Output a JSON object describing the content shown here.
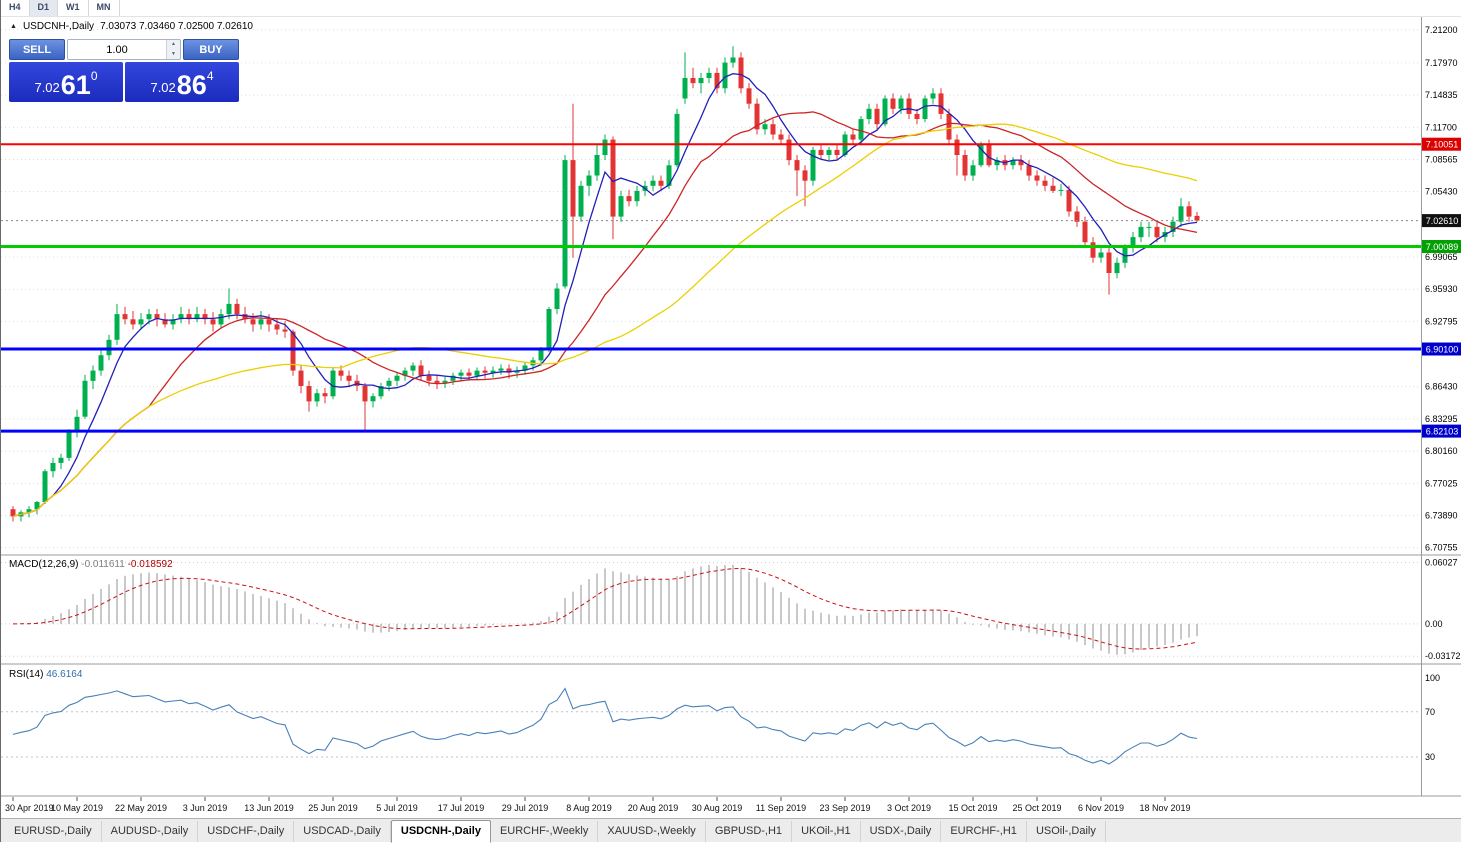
{
  "toolbar": {
    "timeframes": [
      "H4",
      "D1",
      "W1",
      "MN"
    ],
    "active": "D1"
  },
  "chart": {
    "symbol_title": "USDCNH-,Daily",
    "ohlc_title": "7.03073 7.03460 7.02500 7.02610"
  },
  "one_click": {
    "sell_label": "SELL",
    "buy_label": "BUY",
    "volume": "1.00",
    "sell_price": {
      "main": "7.02",
      "big": "61",
      "sup": "0"
    },
    "buy_price": {
      "main": "7.02",
      "big": "86",
      "sup": "4"
    }
  },
  "current_price": {
    "text": "7.02610",
    "value": 7.0261
  },
  "price_axis": {
    "labels": [
      {
        "text": "7.21200",
        "value": 7.212
      },
      {
        "text": "7.17970",
        "value": 7.1797
      },
      {
        "text": "7.14835",
        "value": 7.14835
      },
      {
        "text": "7.11700",
        "value": 7.117
      },
      {
        "text": "7.08565",
        "value": 7.08565
      },
      {
        "text": "7.05430",
        "value": 7.0543
      },
      {
        "text": "6.99065",
        "value": 6.99065
      },
      {
        "text": "6.95930",
        "value": 6.9593
      },
      {
        "text": "6.92795",
        "value": 6.92795
      },
      {
        "text": "6.86430",
        "value": 6.8643
      },
      {
        "text": "6.83295",
        "value": 6.83295
      },
      {
        "text": "6.80160",
        "value": 6.8016
      },
      {
        "text": "6.77025",
        "value": 6.77025
      },
      {
        "text": "6.73890",
        "value": 6.7389
      },
      {
        "text": "6.70755",
        "value": 6.70755
      }
    ],
    "badges": [
      {
        "text": "7.10051",
        "value": 7.10051,
        "bg": "#dd0000",
        "fg": "#ffffff"
      },
      {
        "text": "7.02610",
        "value": 7.0261,
        "bg": "#111111",
        "fg": "#ffffff"
      },
      {
        "text": "7.00089",
        "value": 7.00089,
        "bg": "#00a000",
        "fg": "#ffffff"
      },
      {
        "text": "6.90100",
        "value": 6.901,
        "bg": "#0000cc",
        "fg": "#ffffff"
      },
      {
        "text": "6.82103",
        "value": 6.82103,
        "bg": "#0000cc",
        "fg": "#ffffff"
      }
    ]
  },
  "levels": [
    {
      "value": 7.10051,
      "color": "#ff0000",
      "width": 2
    },
    {
      "value": 7.00089,
      "color": "#00cc00",
      "width": 3
    },
    {
      "value": 6.901,
      "color": "#0000ff",
      "width": 3
    },
    {
      "value": 6.82103,
      "color": "#0000ff",
      "width": 3
    }
  ],
  "macd_panel": {
    "name": "MACD(12,26,9)",
    "value_main": "-0.011611",
    "value_signal": "-0.018592",
    "axis_labels": [
      {
        "text": "0.06027",
        "value": 0.06027
      },
      {
        "text": "0.00",
        "value": 0
      },
      {
        "text": "-0.03172",
        "value": -0.03172
      }
    ],
    "range": [
      -0.0335,
      0.0628
    ]
  },
  "rsi_panel": {
    "name": "RSI(14)",
    "value": "46.6164",
    "axis_labels": [
      {
        "text": "100",
        "value": 100
      },
      {
        "text": "70",
        "value": 70
      },
      {
        "text": "30",
        "value": 30
      }
    ],
    "levels": [
      70,
      30
    ],
    "range": [
      0,
      106
    ]
  },
  "tabs": {
    "items": [
      {
        "label": "EURUSD-,Daily",
        "active": false
      },
      {
        "label": "AUDUSD-,Daily",
        "active": false
      },
      {
        "label": "USDCHF-,Daily",
        "active": false
      },
      {
        "label": "USDCAD-,Daily",
        "active": false
      },
      {
        "label": "USDCNH-,Daily",
        "active": true
      },
      {
        "label": "EURCHF-,Weekly",
        "active": false
      },
      {
        "label": "XAUUSD-,Weekly",
        "active": false
      },
      {
        "label": "GBPUSD-,H1",
        "active": false
      },
      {
        "label": "UKOil-,H1",
        "active": false
      },
      {
        "label": "USDX-,Daily",
        "active": false
      },
      {
        "label": "EURCHF-,H1",
        "active": false
      },
      {
        "label": "USOil-,Daily",
        "active": false
      }
    ]
  },
  "chart_data": {
    "type": "candlestick",
    "symbol": "USDCNH-",
    "timeframe": "Daily",
    "title": "USDCNH-,Daily",
    "last_ohlc": {
      "open": 7.03073,
      "high": 7.0346,
      "low": 7.025,
      "close": 7.0261
    },
    "price_range_visible": [
      6.7033,
      7.2215
    ],
    "grid": true,
    "moving_averages": [
      {
        "type": "sma",
        "period": 6,
        "color": "#2020b8"
      },
      {
        "type": "sma",
        "period": 18,
        "color": "#cc2424"
      },
      {
        "type": "sma",
        "period": 42,
        "color": "#eccf00"
      }
    ],
    "colors": {
      "up": "#00b04f",
      "down": "#e23434",
      "grid": "#dadada",
      "macd_hist": "#b2b2b2",
      "macd_signal": "#cc1111",
      "rsi": "#4a80b8"
    },
    "date_labels": [
      {
        "label": "30 Apr 2019",
        "index": 0
      },
      {
        "label": "10 May 2019",
        "index": 8
      },
      {
        "label": "22 May 2019",
        "index": 16
      },
      {
        "label": "3 Jun 2019",
        "index": 24
      },
      {
        "label": "13 Jun 2019",
        "index": 32
      },
      {
        "label": "25 Jun 2019",
        "index": 40
      },
      {
        "label": "5 Jul 2019",
        "index": 48
      },
      {
        "label": "17 Jul 2019",
        "index": 56
      },
      {
        "label": "29 Jul 2019",
        "index": 64
      },
      {
        "label": "8 Aug 2019",
        "index": 72
      },
      {
        "label": "20 Aug 2019",
        "index": 80
      },
      {
        "label": "30 Aug 2019",
        "index": 88
      },
      {
        "label": "11 Sep 2019",
        "index": 96
      },
      {
        "label": "23 Sep 2019",
        "index": 104
      },
      {
        "label": "3 Oct 2019",
        "index": 112
      },
      {
        "label": "15 Oct 2019",
        "index": 120
      },
      {
        "label": "25 Oct 2019",
        "index": 128
      },
      {
        "label": "6 Nov 2019",
        "index": 136
      },
      {
        "label": "18 Nov 2019",
        "index": 144
      }
    ],
    "candles": [
      [
        6.745,
        6.748,
        6.733,
        6.738
      ],
      [
        6.738,
        6.744,
        6.733,
        6.742
      ],
      [
        6.742,
        6.748,
        6.737,
        6.745
      ],
      [
        6.745,
        6.753,
        6.74,
        6.752
      ],
      [
        6.752,
        6.784,
        6.75,
        6.782
      ],
      [
        6.782,
        6.795,
        6.776,
        6.79
      ],
      [
        6.79,
        6.799,
        6.784,
        6.795
      ],
      [
        6.795,
        6.823,
        6.792,
        6.82
      ],
      [
        6.82,
        6.842,
        6.815,
        6.835
      ],
      [
        6.835,
        6.876,
        6.833,
        6.87
      ],
      [
        6.87,
        6.885,
        6.862,
        6.88
      ],
      [
        6.88,
        6.9,
        6.875,
        6.895
      ],
      [
        6.895,
        6.915,
        6.89,
        6.91
      ],
      [
        6.91,
        6.945,
        6.905,
        6.935
      ],
      [
        6.935,
        6.942,
        6.925,
        6.93
      ],
      [
        6.93,
        6.938,
        6.92,
        6.925
      ],
      [
        6.925,
        6.936,
        6.92,
        6.93
      ],
      [
        6.93,
        6.94,
        6.925,
        6.935
      ],
      [
        6.935,
        6.94,
        6.923,
        6.93
      ],
      [
        6.93,
        6.936,
        6.922,
        6.925
      ],
      [
        6.925,
        6.935,
        6.92,
        6.93
      ],
      [
        6.93,
        6.942,
        6.926,
        6.935
      ],
      [
        6.935,
        6.94,
        6.925,
        6.93
      ],
      [
        6.93,
        6.942,
        6.927,
        6.935
      ],
      [
        6.935,
        6.94,
        6.925,
        6.93
      ],
      [
        6.93,
        6.937,
        6.918,
        6.925
      ],
      [
        6.925,
        6.94,
        6.921,
        6.935
      ],
      [
        6.935,
        6.96,
        6.93,
        6.945
      ],
      [
        6.945,
        6.95,
        6.93,
        6.935
      ],
      [
        6.935,
        6.942,
        6.926,
        6.93
      ],
      [
        6.93,
        6.936,
        6.918,
        6.925
      ],
      [
        6.925,
        6.938,
        6.92,
        6.93
      ],
      [
        6.93,
        6.935,
        6.918,
        6.925
      ],
      [
        6.925,
        6.93,
        6.915,
        6.92
      ],
      [
        6.92,
        6.928,
        6.912,
        6.918
      ],
      [
        6.918,
        6.92,
        6.875,
        6.88
      ],
      [
        6.88,
        6.885,
        6.858,
        6.865
      ],
      [
        6.865,
        6.87,
        6.84,
        6.85
      ],
      [
        6.85,
        6.862,
        6.845,
        6.858
      ],
      [
        6.858,
        6.863,
        6.848,
        6.855
      ],
      [
        6.855,
        6.883,
        6.852,
        6.88
      ],
      [
        6.88,
        6.885,
        6.87,
        6.875
      ],
      [
        6.875,
        6.88,
        6.865,
        6.87
      ],
      [
        6.87,
        6.876,
        6.86,
        6.865
      ],
      [
        6.865,
        6.868,
        6.821,
        6.85
      ],
      [
        6.85,
        6.858,
        6.844,
        6.855
      ],
      [
        6.855,
        6.868,
        6.852,
        6.865
      ],
      [
        6.865,
        6.873,
        6.86,
        6.87
      ],
      [
        6.87,
        6.878,
        6.865,
        6.875
      ],
      [
        6.875,
        6.883,
        6.87,
        6.88
      ],
      [
        6.88,
        6.888,
        6.875,
        6.885
      ],
      [
        6.885,
        6.89,
        6.87,
        6.875
      ],
      [
        6.875,
        6.88,
        6.865,
        6.87
      ],
      [
        6.87,
        6.875,
        6.862,
        6.868
      ],
      [
        6.868,
        6.874,
        6.863,
        6.87
      ],
      [
        6.87,
        6.878,
        6.866,
        6.875
      ],
      [
        6.875,
        6.881,
        6.87,
        6.878
      ],
      [
        6.878,
        6.882,
        6.87,
        6.875
      ],
      [
        6.875,
        6.883,
        6.871,
        6.88
      ],
      [
        6.88,
        6.884,
        6.872,
        6.878
      ],
      [
        6.878,
        6.884,
        6.873,
        6.88
      ],
      [
        6.88,
        6.886,
        6.876,
        6.882
      ],
      [
        6.882,
        6.886,
        6.872,
        6.878
      ],
      [
        6.878,
        6.884,
        6.873,
        6.88
      ],
      [
        6.88,
        6.888,
        6.876,
        6.885
      ],
      [
        6.885,
        6.893,
        6.88,
        6.89
      ],
      [
        6.89,
        6.903,
        6.885,
        6.9
      ],
      [
        6.9,
        6.942,
        6.898,
        6.94
      ],
      [
        6.94,
        6.965,
        6.935,
        6.96
      ],
      [
        6.962,
        7.09,
        6.96,
        7.085
      ],
      [
        7.085,
        7.14,
        6.99,
        7.03
      ],
      [
        7.03,
        7.065,
        7.025,
        7.06
      ],
      [
        7.06,
        7.075,
        7.05,
        7.07
      ],
      [
        7.07,
        7.1,
        7.065,
        7.09
      ],
      [
        7.09,
        7.11,
        7.085,
        7.105
      ],
      [
        7.105,
        7.108,
        7.008,
        7.03
      ],
      [
        7.03,
        7.055,
        7.025,
        7.05
      ],
      [
        7.05,
        7.056,
        7.04,
        7.045
      ],
      [
        7.045,
        7.06,
        7.04,
        7.055
      ],
      [
        7.055,
        7.065,
        7.05,
        7.06
      ],
      [
        7.06,
        7.07,
        7.055,
        7.065
      ],
      [
        7.065,
        7.07,
        7.055,
        7.06
      ],
      [
        7.06,
        7.085,
        7.057,
        7.08
      ],
      [
        7.08,
        7.135,
        7.078,
        7.13
      ],
      [
        7.145,
        7.19,
        7.14,
        7.165
      ],
      [
        7.165,
        7.175,
        7.155,
        7.16
      ],
      [
        7.16,
        7.17,
        7.15,
        7.165
      ],
      [
        7.165,
        7.175,
        7.16,
        7.17
      ],
      [
        7.17,
        7.175,
        7.15,
        7.155
      ],
      [
        7.155,
        7.185,
        7.15,
        7.18
      ],
      [
        7.18,
        7.196,
        7.175,
        7.185
      ],
      [
        7.185,
        7.19,
        7.15,
        7.155
      ],
      [
        7.155,
        7.16,
        7.135,
        7.14
      ],
      [
        7.14,
        7.145,
        7.11,
        7.115
      ],
      [
        7.115,
        7.125,
        7.11,
        7.12
      ],
      [
        7.12,
        7.125,
        7.105,
        7.11
      ],
      [
        7.11,
        7.115,
        7.1,
        7.105
      ],
      [
        7.105,
        7.11,
        7.08,
        7.085
      ],
      [
        7.085,
        7.09,
        7.05,
        7.075
      ],
      [
        7.075,
        7.08,
        7.04,
        7.065
      ],
      [
        7.065,
        7.098,
        7.06,
        7.095
      ],
      [
        7.095,
        7.1,
        7.085,
        7.09
      ],
      [
        7.09,
        7.098,
        7.085,
        7.095
      ],
      [
        7.095,
        7.1,
        7.085,
        7.09
      ],
      [
        7.09,
        7.113,
        7.088,
        7.11
      ],
      [
        7.11,
        7.115,
        7.1,
        7.105
      ],
      [
        7.105,
        7.128,
        7.1,
        7.125
      ],
      [
        7.125,
        7.14,
        7.12,
        7.135
      ],
      [
        7.135,
        7.14,
        7.115,
        7.12
      ],
      [
        7.12,
        7.148,
        7.118,
        7.145
      ],
      [
        7.145,
        7.15,
        7.13,
        7.135
      ],
      [
        7.135,
        7.148,
        7.13,
        7.145
      ],
      [
        7.145,
        7.15,
        7.125,
        7.13
      ],
      [
        7.13,
        7.135,
        7.12,
        7.125
      ],
      [
        7.125,
        7.148,
        7.122,
        7.145
      ],
      [
        7.145,
        7.155,
        7.14,
        7.15
      ],
      [
        7.15,
        7.155,
        7.125,
        7.13
      ],
      [
        7.13,
        7.135,
        7.1,
        7.105
      ],
      [
        7.105,
        7.11,
        7.07,
        7.09
      ],
      [
        7.09,
        7.095,
        7.065,
        7.07
      ],
      [
        7.07,
        7.085,
        7.065,
        7.08
      ],
      [
        7.08,
        7.103,
        7.078,
        7.1
      ],
      [
        7.1,
        7.105,
        7.078,
        7.08
      ],
      [
        7.08,
        7.088,
        7.075,
        7.085
      ],
      [
        7.085,
        7.09,
        7.075,
        7.08
      ],
      [
        7.08,
        7.088,
        7.076,
        7.085
      ],
      [
        7.085,
        7.09,
        7.075,
        7.08
      ],
      [
        7.08,
        7.085,
        7.065,
        7.07
      ],
      [
        7.07,
        7.075,
        7.06,
        7.065
      ],
      [
        7.065,
        7.07,
        7.055,
        7.06
      ],
      [
        7.06,
        7.068,
        7.053,
        7.055
      ],
      [
        7.055,
        7.062,
        7.05,
        7.056
      ],
      [
        7.056,
        7.06,
        7.03,
        7.035
      ],
      [
        7.035,
        7.04,
        7.02,
        7.025
      ],
      [
        7.025,
        7.03,
        7.0,
        7.005
      ],
      [
        7.005,
        7.01,
        6.985,
        6.99
      ],
      [
        6.99,
        7.0,
        6.985,
        6.995
      ],
      [
        6.995,
        7.0,
        6.954,
        6.975
      ],
      [
        6.975,
        6.99,
        6.97,
        6.985
      ],
      [
        6.985,
        7.003,
        6.98,
        7.0
      ],
      [
        7.0,
        7.015,
        6.995,
        7.01
      ],
      [
        7.01,
        7.025,
        7.005,
        7.02
      ],
      [
        7.02,
        7.025,
        7.01,
        7.02
      ],
      [
        7.02,
        7.025,
        7.005,
        7.01
      ],
      [
        7.01,
        7.02,
        7.005,
        7.015
      ],
      [
        7.015,
        7.03,
        7.01,
        7.025
      ],
      [
        7.025,
        7.048,
        7.02,
        7.04
      ],
      [
        7.04,
        7.045,
        7.025,
        7.03
      ],
      [
        7.0307,
        7.0346,
        7.025,
        7.0261
      ]
    ]
  }
}
